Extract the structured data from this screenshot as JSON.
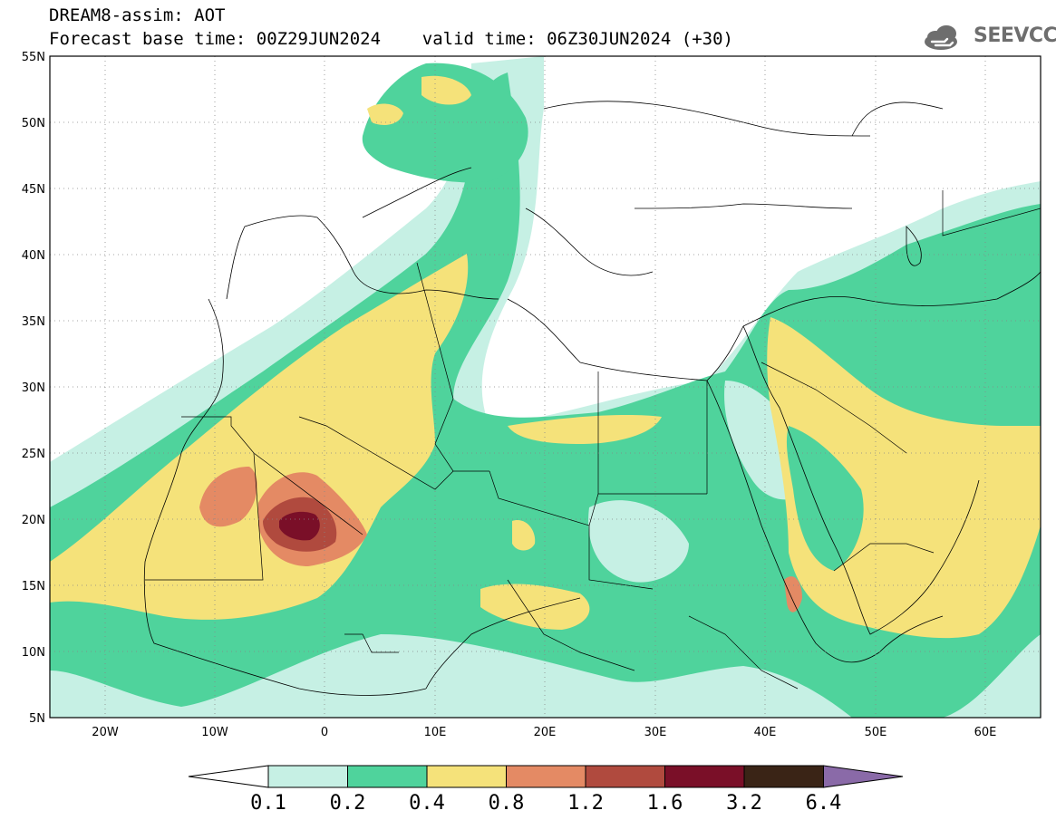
{
  "header": {
    "title_line1": "DREAM8-assim: AOT",
    "title_line2": "Forecast base time: 00Z29JUN2024    valid time: 06Z30JUN2024 (+30)",
    "logo_text": "SEEVCCC"
  },
  "map": {
    "lon_range": [
      -25,
      65
    ],
    "lat_range": [
      5,
      55
    ],
    "lat_ticks": [
      "55N",
      "50N",
      "45N",
      "40N",
      "35N",
      "30N",
      "25N",
      "20N",
      "15N",
      "10N",
      "5N"
    ],
    "lon_ticks": [
      "20W",
      "10W",
      "0",
      "10E",
      "20E",
      "30E",
      "40E",
      "50E",
      "60E"
    ]
  },
  "colorbar": {
    "levels": [
      "0.1",
      "0.2",
      "0.4",
      "0.8",
      "1.2",
      "1.6",
      "3.2",
      "6.4"
    ],
    "colors": [
      "#ffffff",
      "#c6f0e4",
      "#4fd39c",
      "#f5e27a",
      "#e48a64",
      "#b04a3e",
      "#7a0f28",
      "#3a2416",
      "#8a6aa8"
    ]
  },
  "colors": {
    "very_light": "#c6f0e4",
    "green": "#4fd39c",
    "yellow": "#f5e27a",
    "orange": "#e48a64",
    "brown_red": "#b04a3e",
    "dark_red": "#7a0f28"
  }
}
